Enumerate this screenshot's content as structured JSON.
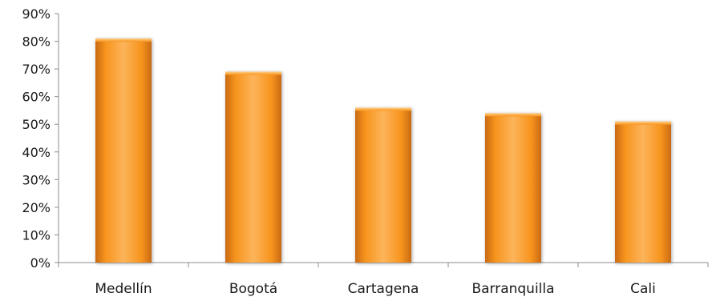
{
  "chart_data": {
    "type": "bar",
    "title": "",
    "xlabel": "",
    "ylabel": "",
    "categories": [
      "Medellín",
      "Bogotá",
      "Cartagena",
      "Barranquilla",
      "Cali"
    ],
    "values": [
      81,
      69,
      56,
      54,
      51
    ],
    "value_format": "percent",
    "ylim": [
      0,
      90
    ],
    "yticks": [
      0,
      10,
      20,
      30,
      40,
      50,
      60,
      70,
      80,
      90
    ],
    "ytick_labels": [
      "0%",
      "10%",
      "20%",
      "30%",
      "40%",
      "50%",
      "60%",
      "70%",
      "80%",
      "90%"
    ],
    "grid": false,
    "legend": "none",
    "bar_color": "#F7941D",
    "bar_highlight_color": "#FDB45A",
    "bar_shadow_color": "#B85A0B"
  }
}
